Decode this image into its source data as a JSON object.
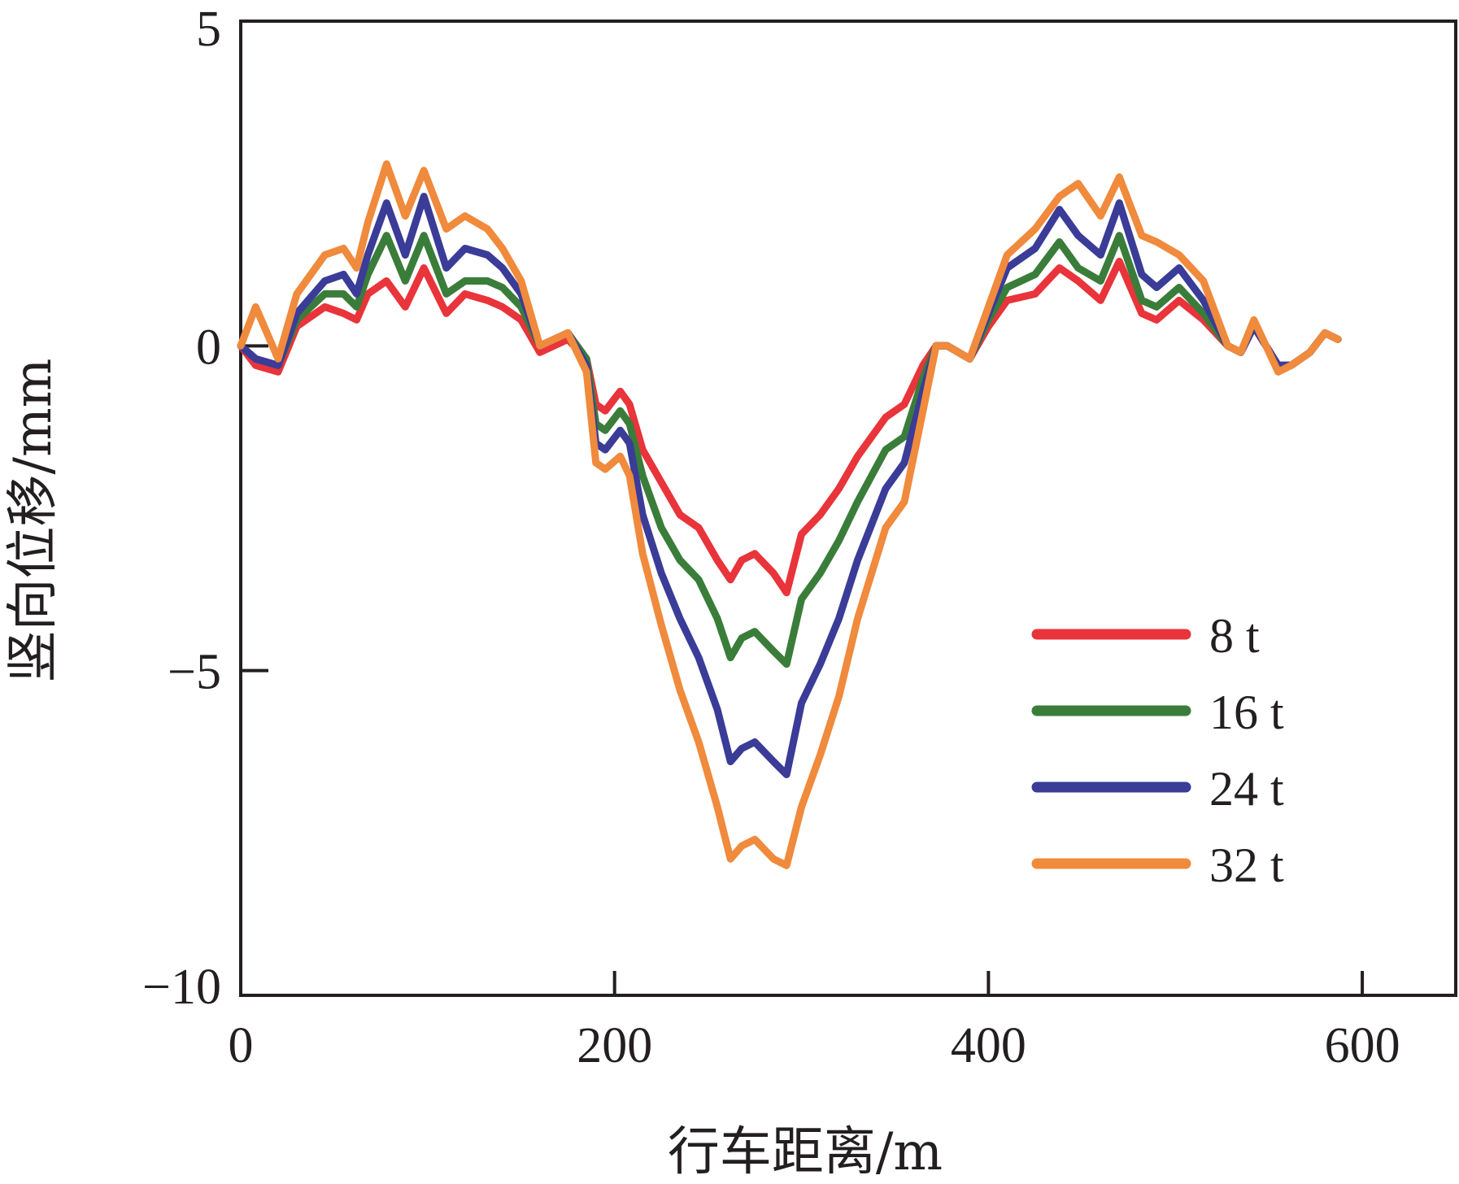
{
  "chart_data": {
    "type": "line",
    "xlabel": "行车距离/m",
    "ylabel": "竖向位移/mm",
    "xlim": [
      0,
      650
    ],
    "ylim": [
      -10,
      5
    ],
    "xticks": [
      0,
      200,
      400,
      600
    ],
    "yticks": [
      5,
      0,
      -5,
      -10
    ],
    "xtick_labels": [
      "0",
      "200",
      "400",
      "600"
    ],
    "ytick_labels": [
      "5",
      "0",
      "−5",
      "−10"
    ],
    "grid": false,
    "legend_position": "right-lower",
    "x": [
      0,
      8,
      20,
      30,
      45,
      55,
      62,
      68,
      78,
      88,
      98,
      110,
      120,
      132,
      140,
      150,
      160,
      175,
      185,
      190,
      195,
      203,
      208,
      215,
      225,
      235,
      245,
      255,
      262,
      268,
      275,
      285,
      292,
      300,
      310,
      320,
      330,
      345,
      355,
      365,
      372,
      378,
      390,
      400,
      410,
      425,
      438,
      448,
      460,
      470,
      482,
      490,
      502,
      515,
      528,
      535,
      542,
      555,
      562,
      572,
      580,
      587
    ],
    "series": [
      {
        "name": "8 t",
        "color": "#e8343a",
        "values": [
          0.0,
          -0.3,
          -0.4,
          0.3,
          0.6,
          0.5,
          0.4,
          0.8,
          1.0,
          0.6,
          1.2,
          0.5,
          0.8,
          0.7,
          0.6,
          0.4,
          -0.1,
          0.1,
          -0.2,
          -0.9,
          -1.0,
          -0.7,
          -0.9,
          -1.6,
          -2.1,
          -2.6,
          -2.8,
          -3.3,
          -3.6,
          -3.3,
          -3.2,
          -3.5,
          -3.8,
          -2.9,
          -2.6,
          -2.2,
          -1.7,
          -1.1,
          -0.9,
          -0.3,
          0.0,
          0.0,
          -0.2,
          0.3,
          0.7,
          0.8,
          1.2,
          1.0,
          0.7,
          1.3,
          0.5,
          0.4,
          0.7,
          0.4,
          0.0,
          -0.1,
          0.3,
          -0.3,
          -0.3,
          -0.1,
          0.2,
          0.1
        ]
      },
      {
        "name": "16 t",
        "color": "#3a7d3a",
        "values": [
          0.0,
          -0.2,
          -0.3,
          0.4,
          0.8,
          0.8,
          0.6,
          1.1,
          1.7,
          1.0,
          1.7,
          0.8,
          1.0,
          1.0,
          0.9,
          0.6,
          0.0,
          0.2,
          -0.2,
          -1.2,
          -1.3,
          -1.0,
          -1.2,
          -2.0,
          -2.8,
          -3.3,
          -3.6,
          -4.2,
          -4.8,
          -4.5,
          -4.4,
          -4.7,
          -4.9,
          -3.9,
          -3.5,
          -3.0,
          -2.4,
          -1.6,
          -1.4,
          -0.5,
          0.0,
          0.0,
          -0.2,
          0.4,
          0.9,
          1.1,
          1.6,
          1.2,
          1.0,
          1.7,
          0.7,
          0.6,
          0.9,
          0.5,
          0.0,
          -0.1,
          0.3,
          -0.3,
          -0.3,
          -0.1,
          0.2,
          0.1
        ]
      },
      {
        "name": "24 t",
        "color": "#3a3c98",
        "values": [
          0.0,
          -0.2,
          -0.3,
          0.5,
          1.0,
          1.1,
          0.8,
          1.4,
          2.2,
          1.4,
          2.3,
          1.2,
          1.5,
          1.4,
          1.2,
          0.8,
          0.0,
          0.2,
          -0.3,
          -1.5,
          -1.6,
          -1.3,
          -1.5,
          -2.6,
          -3.5,
          -4.2,
          -4.8,
          -5.6,
          -6.4,
          -6.2,
          -6.1,
          -6.4,
          -6.6,
          -5.5,
          -4.9,
          -4.2,
          -3.3,
          -2.2,
          -1.8,
          -0.7,
          0.0,
          0.0,
          -0.2,
          0.5,
          1.2,
          1.5,
          2.1,
          1.7,
          1.4,
          2.2,
          1.1,
          0.9,
          1.2,
          0.7,
          0.0,
          -0.1,
          0.3,
          -0.3,
          -0.3,
          -0.1,
          0.2,
          0.1
        ]
      },
      {
        "name": "32 t",
        "color": "#f08a3c",
        "values": [
          0.0,
          0.6,
          -0.2,
          0.8,
          1.4,
          1.5,
          1.2,
          1.9,
          2.8,
          2.0,
          2.7,
          1.8,
          2.0,
          1.8,
          1.5,
          1.0,
          0.0,
          0.2,
          -0.4,
          -1.8,
          -1.9,
          -1.7,
          -2.0,
          -3.2,
          -4.3,
          -5.3,
          -6.1,
          -7.1,
          -7.9,
          -7.7,
          -7.6,
          -7.9,
          -8.0,
          -7.1,
          -6.3,
          -5.4,
          -4.2,
          -2.8,
          -2.4,
          -1.0,
          0.0,
          0.0,
          -0.2,
          0.6,
          1.4,
          1.8,
          2.3,
          2.5,
          2.0,
          2.6,
          1.7,
          1.6,
          1.4,
          1.0,
          0.0,
          -0.1,
          0.4,
          -0.4,
          -0.3,
          -0.1,
          0.2,
          0.1
        ]
      }
    ]
  }
}
